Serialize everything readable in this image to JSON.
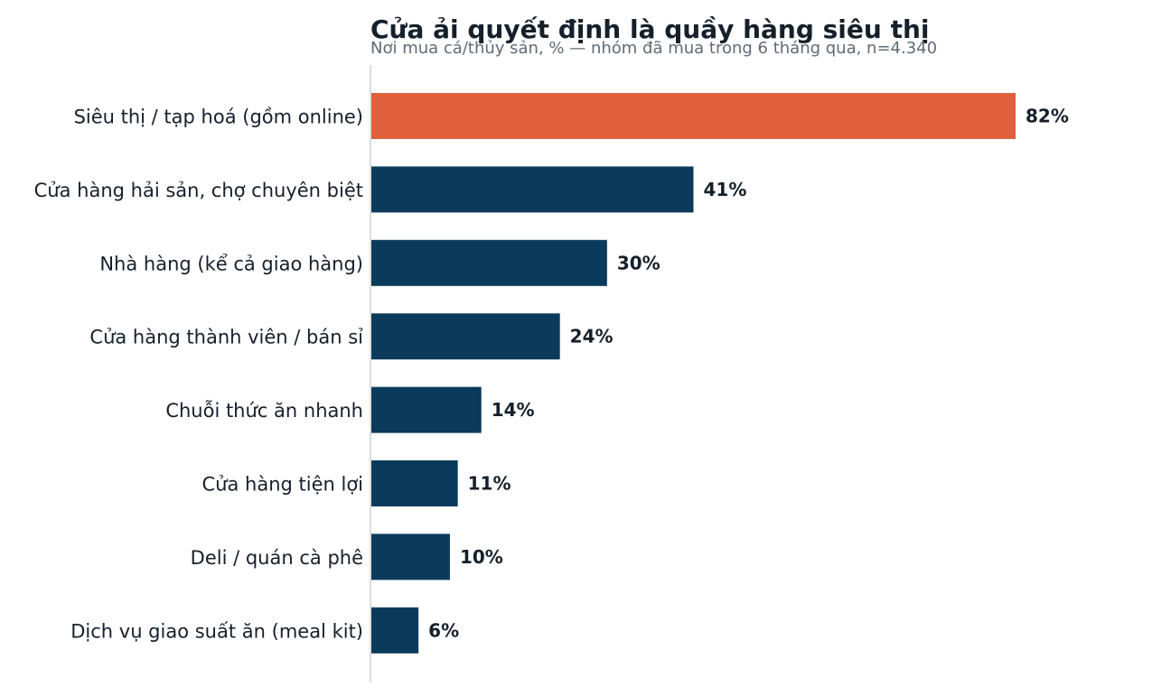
{
  "chart_data": {
    "type": "bar",
    "orientation": "horizontal",
    "title": "Cửa ải quyết định là quầy hàng siêu thị",
    "subtitle": "Nơi mua cá/thủy sản, % — nhóm đã mua trong 6 tháng qua, n=4.340",
    "xlabel": "",
    "ylabel": "",
    "xlim": [
      0,
      100
    ],
    "grid": false,
    "legend": "none",
    "categories": [
      "Siêu thị / tạp hoá (gồm online)",
      "Cửa hàng hải sản, chợ chuyên biệt",
      "Nhà hàng (kể cả giao hàng)",
      "Cửa hàng thành viên / bán sỉ",
      "Chuỗi thức ăn nhanh",
      "Cửa hàng tiện lợi",
      "Deli / quán cà phê",
      "Dịch vụ giao suất ăn (meal kit)"
    ],
    "values": [
      82,
      41,
      30,
      24,
      14,
      11,
      10,
      6
    ],
    "value_labels": [
      "82%",
      "41%",
      "30%",
      "24%",
      "14%",
      "11%",
      "10%",
      "6%"
    ],
    "colors": {
      "highlight": "#e0603d",
      "bar": "#0c3a5b",
      "axis": "#d0d0d0",
      "text": "#15202b",
      "subtitle": "#5f6b76"
    },
    "highlight_index": 0
  }
}
